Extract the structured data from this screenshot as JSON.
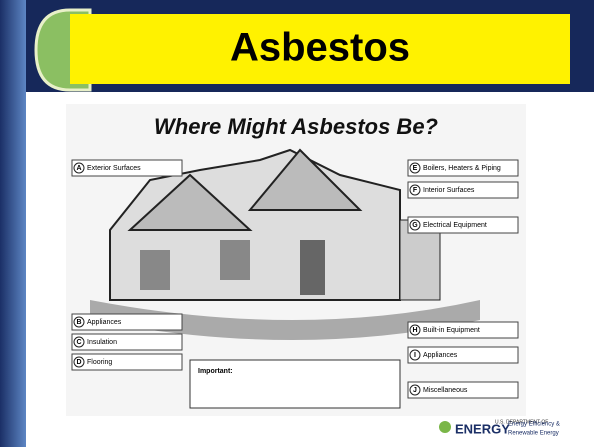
{
  "header": {
    "title": "Asbestos"
  },
  "figure": {
    "title": "Where Might Asbestos Be?",
    "sections": [
      {
        "letter": "A",
        "label": "Exterior Surfaces"
      },
      {
        "letter": "B",
        "label": "Appliances"
      },
      {
        "letter": "C",
        "label": "Insulation"
      },
      {
        "letter": "D",
        "label": "Flooring"
      },
      {
        "letter": "E",
        "label": "Boilers, Heaters & Piping"
      },
      {
        "letter": "F",
        "label": "Interior Surfaces"
      },
      {
        "letter": "G",
        "label": "Electrical Equipment"
      },
      {
        "letter": "H",
        "label": "Built-in Equipment"
      },
      {
        "letter": "I",
        "label": "Appliances"
      },
      {
        "letter": "J",
        "label": "Miscellaneous"
      }
    ],
    "note_title": "Important:"
  },
  "footer": {
    "agency_top": "U.S. DEPARTMENT OF",
    "agency": "ENERGY",
    "office_line1": "Energy Efficiency &",
    "office_line2": "Renewable Energy"
  }
}
